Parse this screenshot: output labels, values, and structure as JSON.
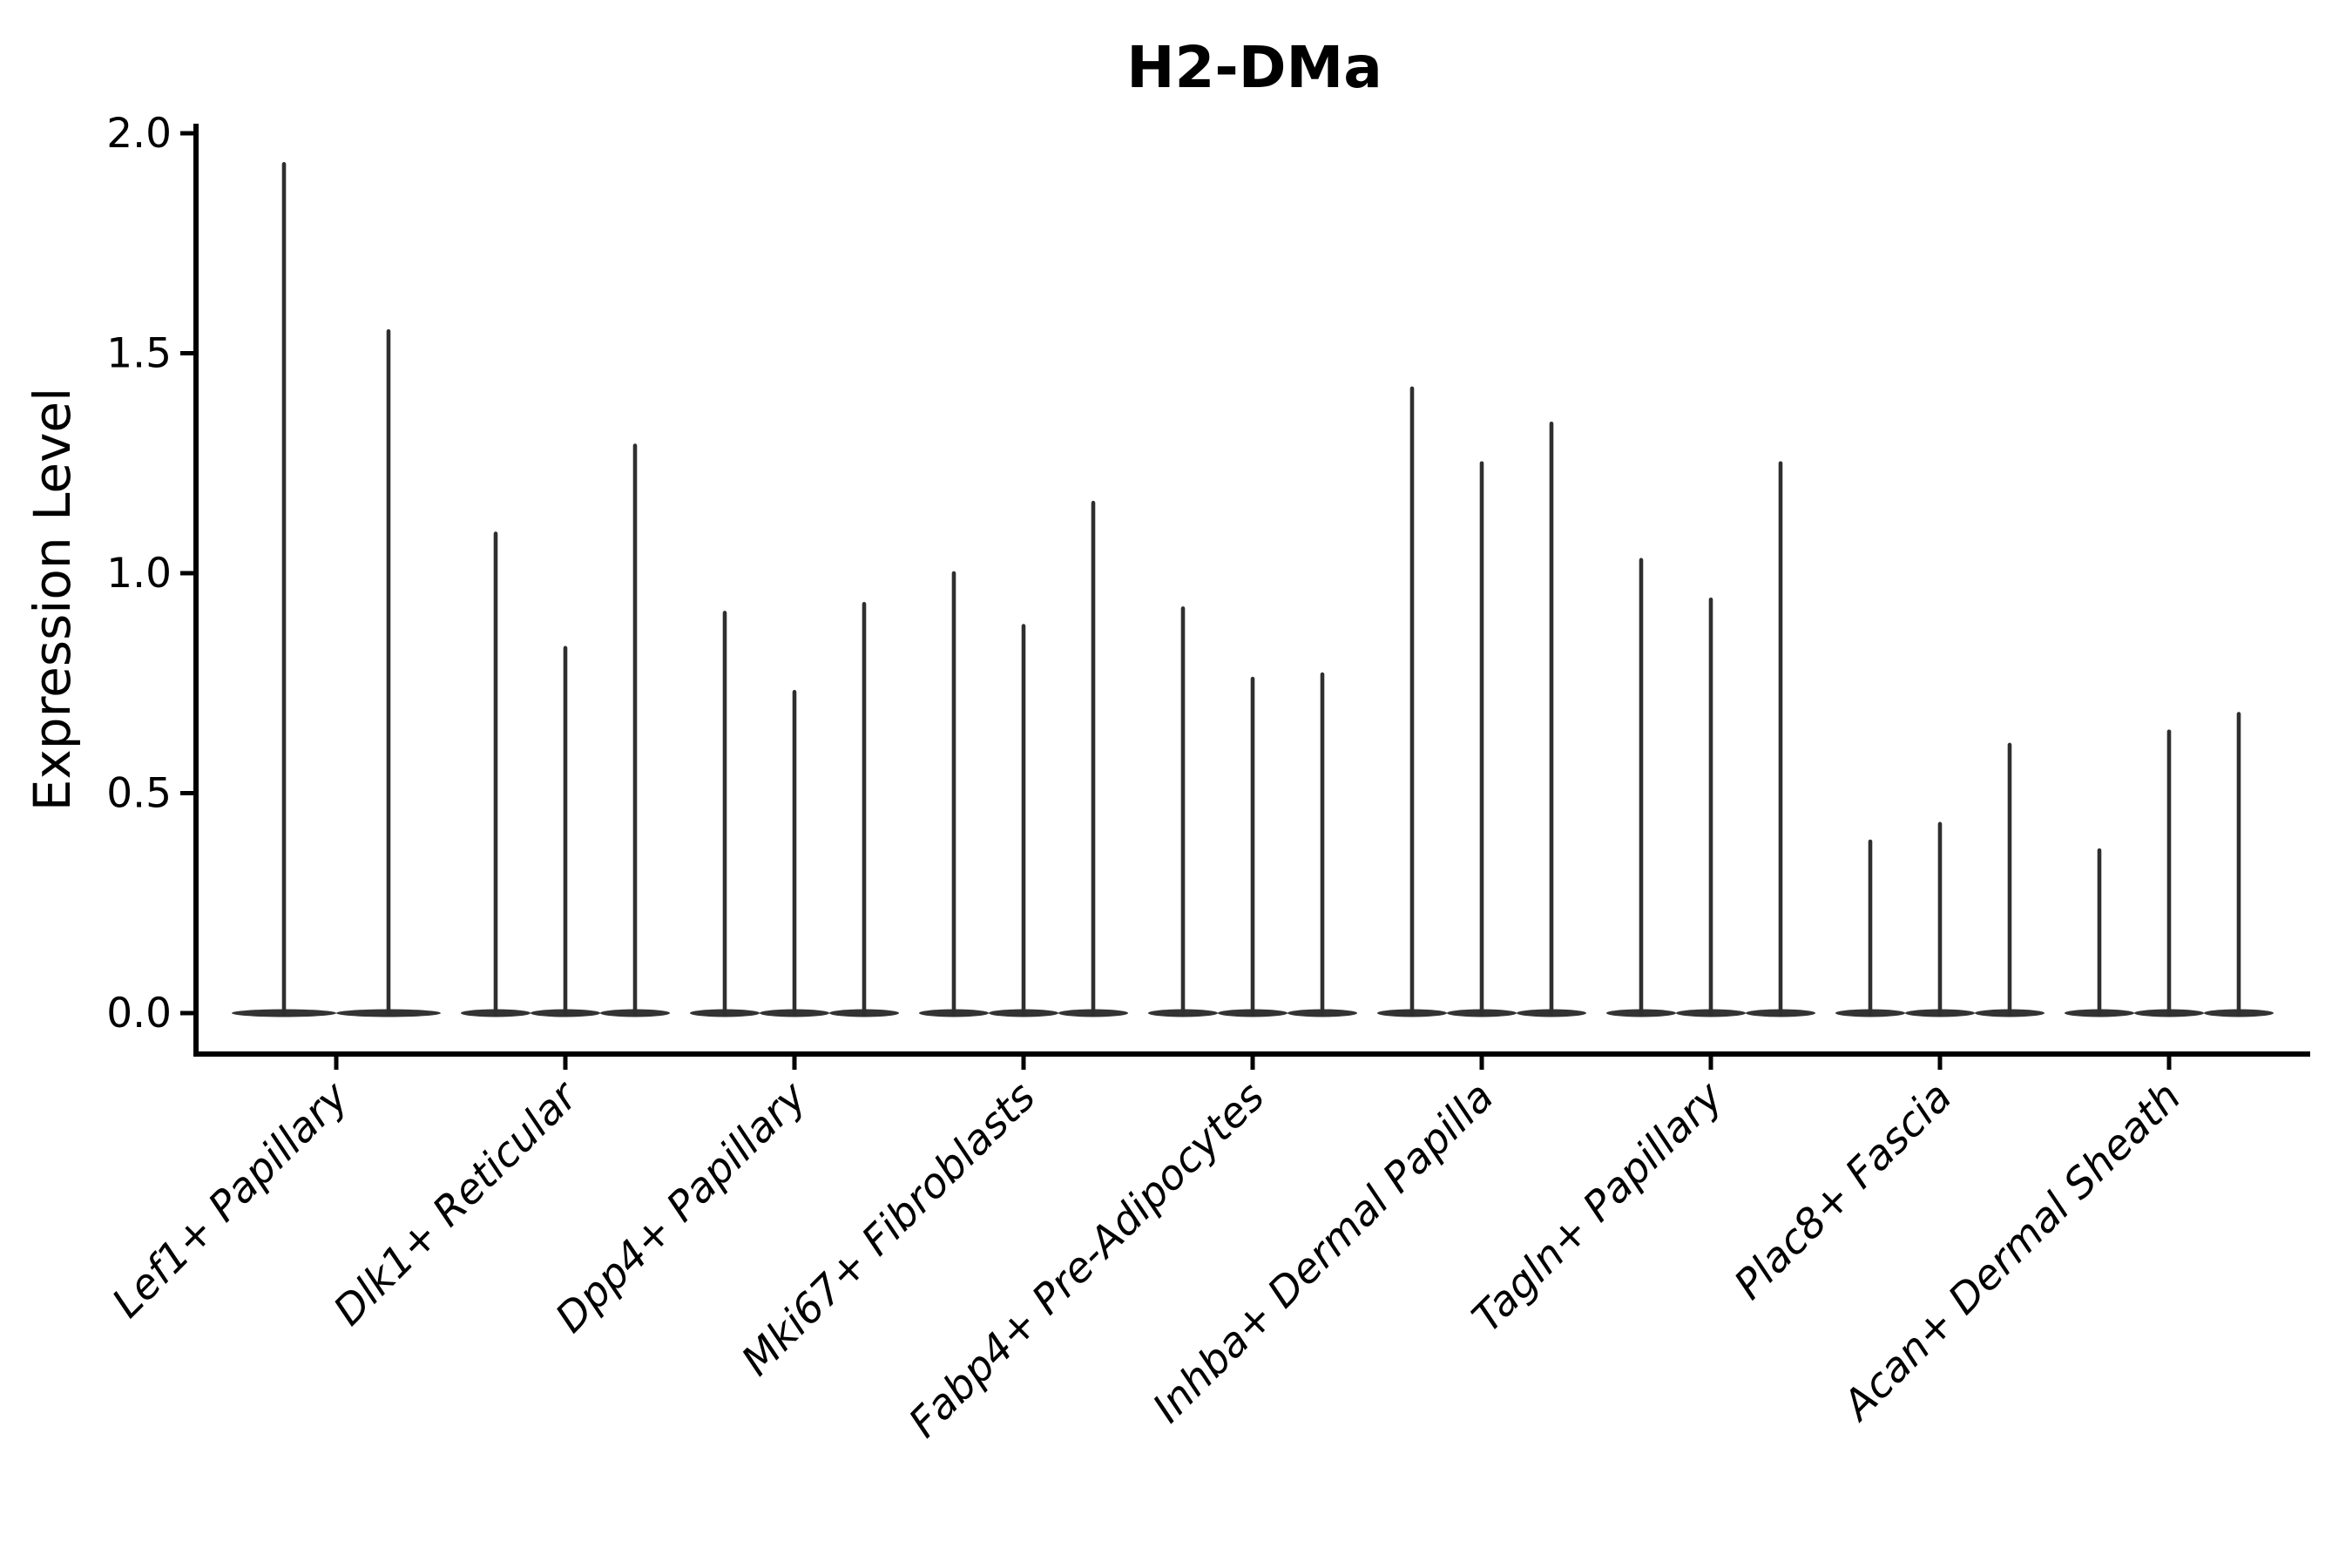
{
  "figure": {
    "title": "H2-DMa"
  },
  "chart_data": {
    "type": "violin",
    "title": "H2-DMa",
    "ylabel": "Expression Level",
    "xlabel": "",
    "ytick_labels": [
      "0.0",
      "0.5",
      "1.0",
      "1.5",
      "2.0"
    ],
    "ytick_values": [
      0.0,
      0.5,
      1.0,
      1.5,
      2.0
    ],
    "ylim": [
      -0.09,
      2.02
    ],
    "grid": false,
    "legend": false,
    "categories": [
      "Lef1+ Papillary",
      "Dlk1+ Reticular",
      "Dpp4+ Papillary",
      "Mki67+ Fibroblasts",
      "Fabp4+ Pre-Adipocytes",
      "Inhba+ Dermal Papilla",
      "Tagln+ Papillary",
      "Plac8+ Fascia",
      "Acan+ Dermal Sheath"
    ],
    "groups": [
      {
        "category": "Lef1+ Papillary",
        "violin_max_values": [
          1.93,
          1.55
        ]
      },
      {
        "category": "Dlk1+ Reticular",
        "violin_max_values": [
          1.09,
          0.83,
          1.29
        ]
      },
      {
        "category": "Dpp4+ Papillary",
        "violin_max_values": [
          0.91,
          0.73,
          0.93
        ]
      },
      {
        "category": "Mki67+ Fibroblasts",
        "violin_max_values": [
          1.0,
          0.88,
          1.16
        ]
      },
      {
        "category": "Fabp4+ Pre-Adipocytes",
        "violin_max_values": [
          0.92,
          0.76,
          0.77
        ]
      },
      {
        "category": "Inhba+ Dermal Papilla",
        "violin_max_values": [
          1.42,
          1.25,
          1.34
        ]
      },
      {
        "category": "Tagln+ Papillary",
        "violin_max_values": [
          1.03,
          0.94,
          1.25
        ]
      },
      {
        "category": "Plac8+ Fascia",
        "violin_max_values": [
          0.39,
          0.43,
          0.61
        ]
      },
      {
        "category": "Acan+ Dermal Sheath",
        "violin_max_values": [
          0.37,
          0.64,
          0.68
        ]
      }
    ],
    "colors": {
      "violin_base": "#333333",
      "spike": "#2f2f2f",
      "axis": "#000000",
      "text": "#000000",
      "background": "#ffffff"
    }
  }
}
